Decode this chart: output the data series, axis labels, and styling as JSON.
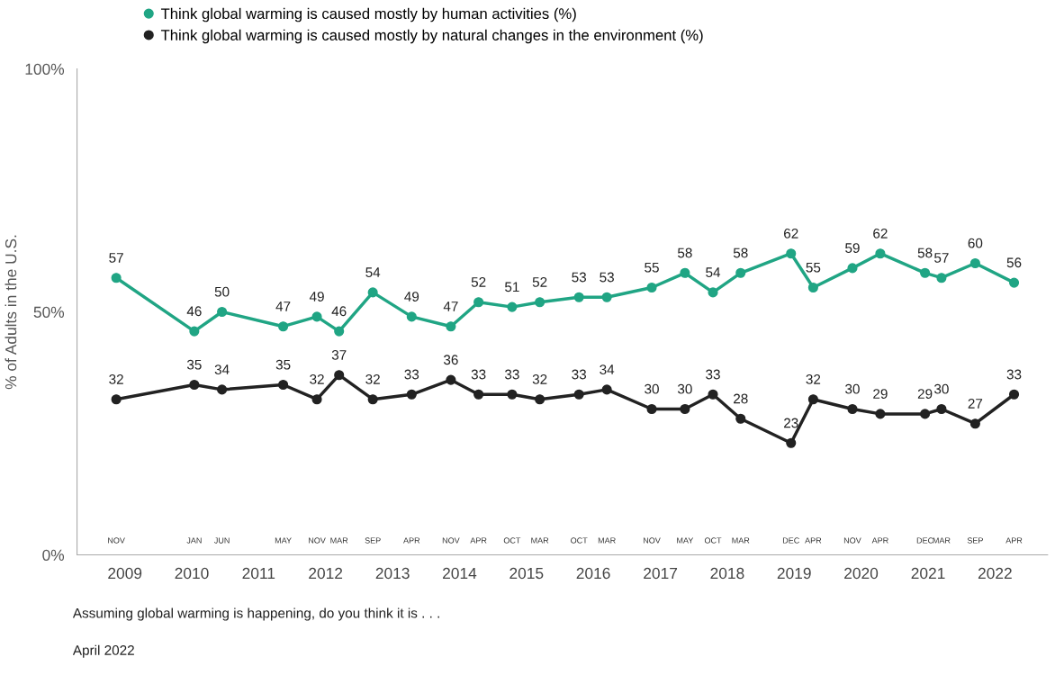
{
  "chart_data": {
    "type": "line",
    "ylabel": "% of Adults in the U.S.",
    "x": [
      "2008-11",
      "2010-01",
      "2010-06",
      "2011-05",
      "2011-11",
      "2012-03",
      "2012-09",
      "2013-04",
      "2013-11",
      "2014-04",
      "2014-10",
      "2015-03",
      "2015-10",
      "2016-03",
      "2016-11",
      "2017-05",
      "2017-10",
      "2018-03",
      "2018-12",
      "2019-04",
      "2019-11",
      "2020-04",
      "2020-12",
      "2021-03",
      "2021-09",
      "2022-04"
    ],
    "series": [
      {
        "name": "Think global warming is caused mostly by human activities (%)",
        "color": "#20a584",
        "values": [
          57,
          46,
          50,
          47,
          49,
          46,
          54,
          49,
          47,
          52,
          51,
          52,
          53,
          53,
          55,
          58,
          54,
          58,
          62,
          55,
          59,
          62,
          58,
          57,
          60,
          56
        ]
      },
      {
        "name": "Think global warming is caused mostly by natural changes in the environment (%)",
        "color": "#222222",
        "values": [
          32,
          35,
          34,
          35,
          32,
          37,
          32,
          33,
          36,
          33,
          33,
          32,
          33,
          34,
          30,
          30,
          33,
          28,
          23,
          32,
          30,
          29,
          29,
          30,
          27,
          33
        ]
      }
    ],
    "xlim": [
      "2008-04",
      "2022-10"
    ],
    "xticks": [
      "2009",
      "2010",
      "2011",
      "2012",
      "2013",
      "2014",
      "2015",
      "2016",
      "2017",
      "2018",
      "2019",
      "2020",
      "2021",
      "2022"
    ],
    "ylim": [
      0,
      100
    ],
    "yticks": [
      {
        "value": 0,
        "label": "0%"
      },
      {
        "value": 50,
        "label": "50%"
      },
      {
        "value": 100,
        "label": "100%"
      }
    ],
    "data_labels": true,
    "marker": "circle",
    "line_style": "solid",
    "legend": "top left",
    "grid": false,
    "x2lim": [
      "2008-04",
      "2022-10"
    ],
    "x2ticks": [
      {
        "value": "2008-11",
        "label": "NOV"
      },
      {
        "value": "2010-01",
        "label": "JAN"
      },
      {
        "value": "2010-06",
        "label": "JUN"
      },
      {
        "value": "2011-05",
        "label": "MAY"
      },
      {
        "value": "2011-11",
        "label": "NOV"
      },
      {
        "value": "2012-03",
        "label": "MAR"
      },
      {
        "value": "2012-09",
        "label": "SEP"
      },
      {
        "value": "2013-04",
        "label": "APR"
      },
      {
        "value": "2013-11",
        "label": "NOV"
      },
      {
        "value": "2014-04",
        "label": "APR"
      },
      {
        "value": "2014-10",
        "label": "OCT"
      },
      {
        "value": "2015-03",
        "label": "MAR"
      },
      {
        "value": "2015-10",
        "label": "OCT"
      },
      {
        "value": "2016-03",
        "label": "MAR"
      },
      {
        "value": "2016-11",
        "label": "NOV"
      },
      {
        "value": "2017-05",
        "label": "MAY"
      },
      {
        "value": "2017-10",
        "label": "OCT"
      },
      {
        "value": "2018-03",
        "label": "MAR"
      },
      {
        "value": "2018-12",
        "label": "DEC"
      },
      {
        "value": "2019-04",
        "label": "APR"
      },
      {
        "value": "2019-11",
        "label": "NOV"
      },
      {
        "value": "2020-04",
        "label": "APR"
      },
      {
        "value": "2020-12",
        "label": "DEC"
      },
      {
        "value": "2021-03",
        "label": "MAR"
      },
      {
        "value": "2021-09",
        "label": "SEP"
      },
      {
        "value": "2022-04",
        "label": "APR"
      }
    ],
    "annotations": [
      "Assuming global warming is happening, do you think it is . . .",
      "April 2022"
    ]
  }
}
